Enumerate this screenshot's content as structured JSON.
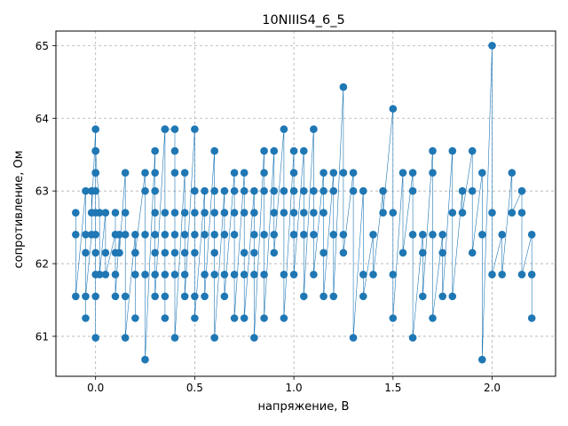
{
  "chart_data": {
    "type": "line",
    "title": "10NIIIS4_6_5",
    "xlabel": "напряжение, В",
    "ylabel": "сопротивление, Ом",
    "xlim": [
      -0.2,
      2.32
    ],
    "ylim": [
      60.45,
      65.2
    ],
    "xticks": [
      0.0,
      0.5,
      1.0,
      1.5,
      2.0
    ],
    "xtick_labels": [
      "0.0",
      "0.5",
      "1.0",
      "1.5",
      "2.0"
    ],
    "yticks": [
      61,
      62,
      63,
      64,
      65
    ],
    "ytick_labels": [
      "61",
      "62",
      "63",
      "64",
      "65"
    ],
    "grid": true,
    "grid_style": "dashed",
    "marker": "circle",
    "color": "#1f77b4",
    "series": [
      {
        "x": [
          -0.1,
          -0.1,
          -0.1,
          -0.05,
          -0.05,
          -0.05,
          -0.05,
          -0.05,
          -0.02,
          -0.02,
          -0.02,
          0.0,
          0.0,
          0.0,
          0.0,
          0.0,
          0.0,
          0.0,
          0.0,
          0.0,
          0.0,
          0.0,
          0.0,
          0.02,
          0.02,
          0.05,
          0.05,
          0.05,
          0.1,
          0.1,
          0.1,
          0.1,
          0.1,
          0.12,
          0.12,
          0.15,
          0.15,
          0.15,
          0.15,
          0.15,
          0.2,
          0.2,
          0.2,
          0.2,
          0.2,
          0.25,
          0.25,
          0.25,
          0.25,
          0.25,
          0.3,
          0.3,
          0.3,
          0.3,
          0.3,
          0.3,
          0.3,
          0.3,
          0.35,
          0.35,
          0.35,
          0.35,
          0.35,
          0.35,
          0.35,
          0.35,
          0.4,
          0.4,
          0.4,
          0.4,
          0.4,
          0.4,
          0.4,
          0.4,
          0.45,
          0.45,
          0.45,
          0.45,
          0.45,
          0.45,
          0.5,
          0.5,
          0.5,
          0.5,
          0.5,
          0.5,
          0.5,
          0.55,
          0.55,
          0.55,
          0.55,
          0.55,
          0.6,
          0.6,
          0.6,
          0.6,
          0.6,
          0.6,
          0.6,
          0.65,
          0.65,
          0.65,
          0.65,
          0.65,
          0.7,
          0.7,
          0.7,
          0.7,
          0.7,
          0.7,
          0.75,
          0.75,
          0.75,
          0.75,
          0.75,
          0.75,
          0.8,
          0.8,
          0.8,
          0.8,
          0.8,
          0.8,
          0.85,
          0.85,
          0.85,
          0.85,
          0.85,
          0.85,
          0.9,
          0.9,
          0.9,
          0.9,
          0.9,
          0.95,
          0.95,
          0.95,
          0.95,
          0.95,
          1.0,
          1.0,
          1.0,
          1.0,
          1.0,
          1.0,
          1.05,
          1.05,
          1.05,
          1.05,
          1.05,
          1.1,
          1.1,
          1.1,
          1.1,
          1.1,
          1.15,
          1.15,
          1.15,
          1.15,
          1.15,
          1.2,
          1.2,
          1.2,
          1.2,
          1.25,
          1.25,
          1.25,
          1.25,
          1.3,
          1.3,
          1.3,
          1.35,
          1.35,
          1.35,
          1.4,
          1.4,
          1.45,
          1.45,
          1.5,
          1.5,
          1.5,
          1.5,
          1.55,
          1.55,
          1.6,
          1.6,
          1.6,
          1.6,
          1.65,
          1.65,
          1.65,
          1.7,
          1.7,
          1.7,
          1.7,
          1.75,
          1.75,
          1.75,
          1.8,
          1.8,
          1.8,
          1.85,
          1.85,
          1.9,
          1.9,
          1.9,
          1.95,
          1.95,
          1.95,
          2.0,
          2.0,
          2.0,
          2.05,
          2.05,
          2.1,
          2.1,
          2.15,
          2.15,
          2.15,
          2.2,
          2.2,
          2.2
        ],
        "y": [
          62.7,
          62.4,
          61.55,
          63.0,
          62.4,
          62.15,
          61.25,
          61.55,
          62.4,
          63.0,
          62.7,
          63.85,
          63.55,
          63.25,
          63.0,
          62.7,
          62.4,
          62.15,
          61.85,
          61.55,
          60.98,
          63.25,
          63.55,
          62.7,
          61.85,
          62.7,
          62.15,
          61.85,
          62.4,
          62.7,
          62.15,
          61.85,
          61.55,
          62.4,
          62.15,
          63.25,
          62.7,
          62.4,
          61.55,
          60.98,
          62.4,
          62.15,
          61.85,
          61.25,
          62.15,
          63.25,
          63.0,
          62.4,
          61.85,
          60.68,
          63.55,
          63.25,
          63.0,
          62.7,
          62.4,
          62.15,
          61.85,
          61.55,
          63.85,
          62.7,
          62.4,
          62.15,
          61.85,
          61.55,
          61.25,
          63.85,
          63.85,
          63.55,
          63.25,
          62.7,
          62.4,
          62.15,
          61.85,
          60.98,
          63.25,
          62.7,
          62.4,
          62.15,
          61.85,
          61.55,
          63.85,
          63.0,
          62.7,
          62.4,
          62.15,
          61.55,
          61.25,
          63.0,
          62.7,
          62.4,
          61.85,
          61.55,
          63.55,
          63.0,
          62.7,
          62.4,
          62.15,
          61.85,
          60.98,
          63.0,
          62.7,
          62.4,
          61.85,
          61.55,
          63.25,
          63.0,
          62.7,
          62.4,
          61.85,
          61.25,
          63.25,
          63.0,
          62.7,
          62.15,
          61.85,
          61.25,
          63.0,
          62.7,
          62.4,
          62.15,
          61.85,
          60.98,
          63.55,
          63.25,
          63.0,
          62.4,
          61.85,
          61.25,
          63.55,
          63.0,
          62.7,
          62.4,
          62.15,
          63.85,
          63.0,
          62.7,
          61.85,
          61.25,
          63.55,
          63.25,
          63.0,
          62.7,
          62.4,
          61.85,
          63.55,
          63.0,
          62.7,
          62.4,
          61.55,
          63.85,
          63.0,
          62.7,
          62.4,
          61.85,
          63.25,
          63.0,
          62.7,
          62.15,
          61.55,
          63.25,
          63.0,
          62.4,
          61.55,
          64.43,
          63.25,
          62.4,
          62.15,
          63.25,
          63.0,
          60.98,
          63.0,
          61.85,
          61.55,
          62.4,
          61.85,
          63.0,
          62.7,
          64.13,
          62.7,
          61.85,
          61.25,
          63.25,
          62.15,
          63.25,
          63.0,
          62.4,
          60.98,
          62.4,
          62.15,
          61.55,
          63.55,
          63.25,
          62.4,
          61.25,
          62.4,
          62.15,
          61.55,
          63.55,
          62.7,
          61.55,
          63.0,
          62.7,
          63.55,
          63.0,
          62.15,
          63.25,
          62.4,
          60.68,
          65.0,
          62.7,
          61.85,
          62.4,
          61.85,
          63.25,
          62.7,
          63.0,
          62.7,
          61.85,
          62.4,
          61.85,
          61.25
        ]
      }
    ]
  }
}
